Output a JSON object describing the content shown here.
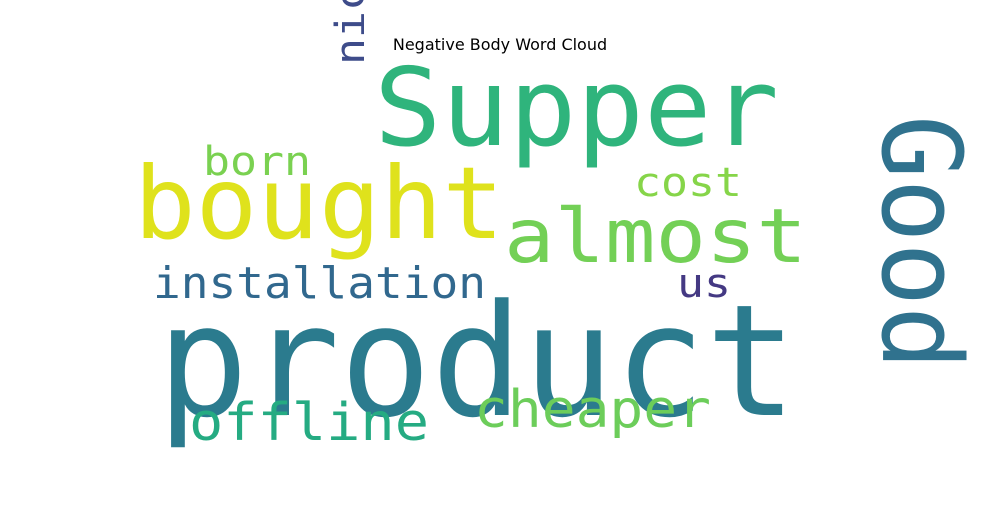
{
  "chart_data": {
    "type": "wordcloud",
    "title": "Negative Body Word Cloud",
    "words": [
      {
        "text": "product",
        "color": "#2b7b8e"
      },
      {
        "text": "Supper",
        "color": "#2fb47c"
      },
      {
        "text": "bought",
        "color": "#dfe21c"
      },
      {
        "text": "Good",
        "color": "#30728e"
      },
      {
        "text": "almost",
        "color": "#73d056"
      },
      {
        "text": "installation",
        "color": "#31688e"
      },
      {
        "text": "cheaper",
        "color": "#6ccd5a"
      },
      {
        "text": "offline",
        "color": "#25ab82"
      },
      {
        "text": "nice",
        "color": "#3e4c8a"
      },
      {
        "text": "born",
        "color": "#7ad151"
      },
      {
        "text": "cost",
        "color": "#86d549"
      },
      {
        "text": "us",
        "color": "#443983"
      }
    ]
  }
}
